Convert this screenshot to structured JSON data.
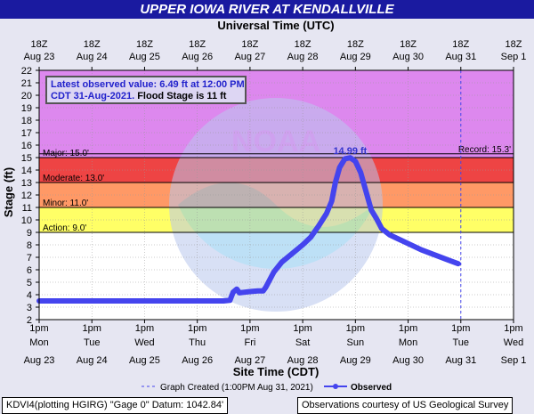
{
  "title": "UPPER IOWA RIVER AT KENDALLVILLE",
  "top_axis_title": "Universal Time (UTC)",
  "bottom_axis_title": "Site Time (CDT)",
  "y_axis_title": "Stage (ft)",
  "info": {
    "line1": "Latest observed value: 6.49 ft at 12:00 PM",
    "line2": "CDT 31-Aug-2021.",
    "line2b": "Flood Stage is 11 ft"
  },
  "legend": {
    "created": "Graph Created (1:00PM Aug 31, 2021)",
    "observed": "Observed"
  },
  "footer_left": "KDVI4(plotting HGIRG) \"Gage 0\" Datum: 1042.84'",
  "footer_right": "Observations courtesy of US Geological Survey",
  "colors": {
    "title_bg": "#1a1aa0",
    "record_zone": "#dd88ee",
    "major_zone": "#ee4444",
    "moderate_zone": "#ff9966",
    "minor_zone": "#ffff66",
    "observed_line": "#4444ee"
  },
  "chart_data": {
    "type": "line",
    "ylim": [
      2,
      22
    ],
    "yticks": [
      "2",
      "3",
      "4",
      "5",
      "6",
      "7",
      "8",
      "9",
      "10",
      "11",
      "12",
      "13",
      "14",
      "15",
      "16",
      "17",
      "18",
      "19",
      "20",
      "21",
      "22"
    ],
    "x_days_cdt": [
      "1pm|Mon|Aug 23",
      "1pm|Tue|Aug 24",
      "1pm|Wed|Aug 25",
      "1pm|Thu|Aug 26",
      "1pm|Fri|Aug 27",
      "1pm|Sat|Aug 28",
      "1pm|Sun|Aug 29",
      "1pm|Mon|Aug 30",
      "1pm|Tue|Aug 31",
      "1pm|Wed|Sep 1"
    ],
    "x_days_utc": [
      "18Z|Aug 23",
      "18Z|Aug 24",
      "18Z|Aug 25",
      "18Z|Aug 26",
      "18Z|Aug 27",
      "18Z|Aug 28",
      "18Z|Aug 29",
      "18Z|Aug 30",
      "18Z|Aug 31",
      "18Z|Sep 1"
    ],
    "thresholds": [
      {
        "label": "Action: 9.0'",
        "value": 9.0
      },
      {
        "label": "Minor: 11.0'",
        "value": 11.0
      },
      {
        "label": "Moderate: 13.0'",
        "value": 13.0
      },
      {
        "label": "Major: 15.0'",
        "value": 15.0
      },
      {
        "label": "Record: 15.3'",
        "value": 15.3
      }
    ],
    "peak_label": "14.99 ft",
    "peak_value": 14.99,
    "created_day_index": 8,
    "series": [
      {
        "name": "Observed",
        "x": [
          0,
          0.5,
          1,
          2,
          3,
          3.5,
          3.62,
          3.68,
          3.75,
          3.8,
          3.9,
          4.0,
          4.15,
          4.25,
          4.3,
          4.45,
          4.6,
          4.8,
          5.0,
          5.15,
          5.3,
          5.45,
          5.55,
          5.62,
          5.7,
          5.8,
          5.9,
          6.0,
          6.1,
          6.2,
          6.3,
          6.4,
          6.5,
          6.65,
          6.8,
          7.0,
          7.25,
          7.5,
          7.75,
          7.95
        ],
        "y": [
          3.5,
          3.5,
          3.5,
          3.5,
          3.5,
          3.5,
          3.55,
          4.2,
          4.45,
          4.15,
          4.2,
          4.25,
          4.3,
          4.3,
          4.6,
          5.8,
          6.6,
          7.3,
          8.0,
          8.6,
          9.5,
          10.5,
          11.5,
          13.0,
          14.2,
          14.9,
          14.99,
          14.7,
          13.8,
          12.3,
          10.8,
          10.1,
          9.3,
          8.8,
          8.5,
          8.1,
          7.6,
          7.2,
          6.8,
          6.49
        ]
      }
    ]
  }
}
